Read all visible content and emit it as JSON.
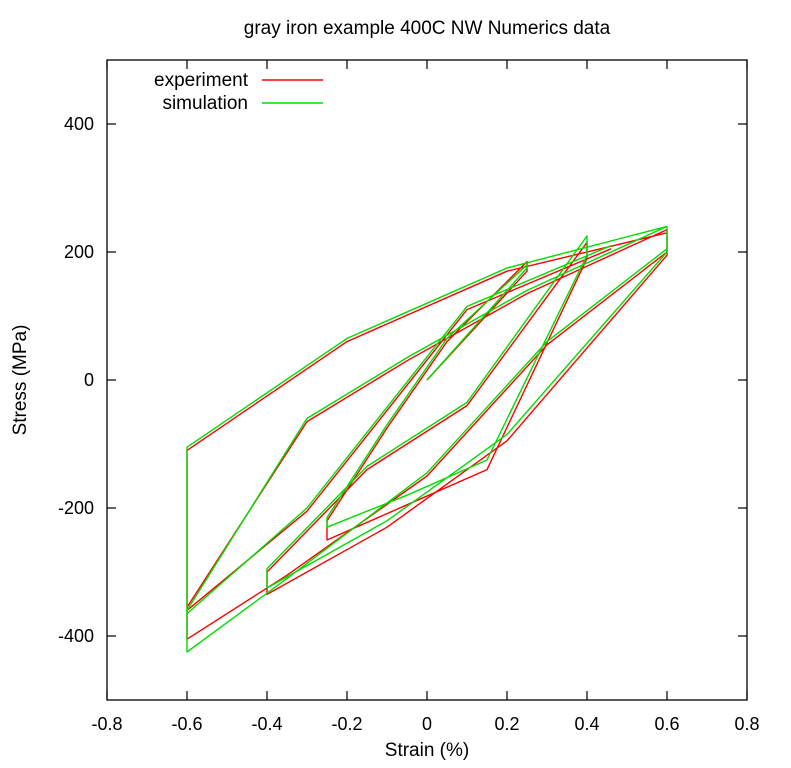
{
  "chart_data": {
    "type": "line",
    "title": "gray iron example 400C NW Numerics data",
    "xlabel": "Strain (%)",
    "ylabel": "Stress (MPa)",
    "xlim": [
      -0.8,
      0.8
    ],
    "ylim": [
      -500,
      500
    ],
    "xticks": [
      "-0.8",
      "-0.6",
      "-0.4",
      "-0.2",
      "0",
      "0.2",
      "0.4",
      "0.6",
      "0.8"
    ],
    "yticks": [
      "-400",
      "-200",
      "0",
      "200",
      "400"
    ],
    "grid": false,
    "legend_position": "top-left",
    "series": [
      {
        "name": "experiment",
        "color": "#ff0000",
        "x": [
          0,
          0.25,
          0.25,
          0.05,
          -0.1,
          -0.25,
          -0.25,
          -0.05,
          0.15,
          0.4,
          0.4,
          0.1,
          -0.15,
          -0.4,
          -0.4,
          -0.1,
          0.2,
          0.6,
          0.6,
          0.25,
          -0.05,
          -0.3,
          -0.6,
          -0.6,
          -0.35,
          0.0,
          0.3,
          0.6,
          0.6,
          0.2,
          -0.2,
          -0.6,
          -0.6,
          -0.3,
          0.1,
          0.46
        ],
        "y": [
          0,
          170,
          185,
          60,
          -75,
          -220,
          -250,
          -195,
          -140,
          190,
          215,
          -40,
          -140,
          -300,
          -335,
          -230,
          -95,
          195,
          235,
          135,
          30,
          -65,
          -355,
          -405,
          -305,
          -150,
          55,
          200,
          230,
          170,
          60,
          -110,
          -360,
          -205,
          110,
          205
        ]
      },
      {
        "name": "simulation",
        "color": "#00dd00",
        "x": [
          0,
          0.25,
          0.25,
          0.05,
          -0.1,
          -0.25,
          -0.25,
          -0.05,
          0.15,
          0.4,
          0.4,
          0.1,
          -0.15,
          -0.4,
          -0.4,
          -0.1,
          0.2,
          0.6,
          0.6,
          0.25,
          -0.05,
          -0.3,
          -0.6,
          -0.6,
          -0.35,
          0.0,
          0.3,
          0.6,
          0.6,
          0.2,
          -0.2,
          -0.6,
          -0.6,
          -0.3,
          0.1,
          0.46
        ],
        "y": [
          0,
          175,
          180,
          65,
          -70,
          -215,
          -230,
          -180,
          -125,
          195,
          225,
          -35,
          -135,
          -295,
          -325,
          -220,
          -85,
          200,
          240,
          140,
          35,
          -60,
          -360,
          -425,
          -310,
          -145,
          60,
          205,
          240,
          175,
          65,
          -105,
          -365,
          -200,
          115,
          210
        ]
      }
    ]
  }
}
